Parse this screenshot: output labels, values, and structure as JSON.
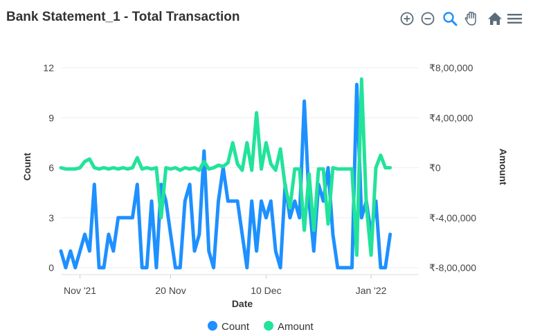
{
  "header": {
    "title": "Bank Statement_1 - Total Transaction"
  },
  "toolbar": {
    "buttons": [
      {
        "icon": "zoom-in-icon",
        "label": "Zoom in"
      },
      {
        "icon": "zoom-out-icon",
        "label": "Zoom out"
      },
      {
        "icon": "selection-zoom-icon",
        "label": "Selection zoom"
      },
      {
        "icon": "pan-hand-icon",
        "label": "Pan"
      },
      {
        "icon": "home-icon",
        "label": "Reset zoom"
      },
      {
        "icon": "menu-icon",
        "label": "Menu"
      }
    ]
  },
  "chart_data": {
    "type": "line",
    "title": "Bank Statement_1 - Total Transaction",
    "xlabel": "Date",
    "x_ticks": [
      "Nov '21",
      "20 Nov",
      "10 Dec",
      "Jan '22"
    ],
    "x_range": [
      "2021-10-28",
      "2022-01-11"
    ],
    "grid": true,
    "legend_position": "bottom",
    "y_axes": [
      {
        "side": "left",
        "label": "Count",
        "ylim": [
          0,
          12
        ],
        "ticks": [
          "0",
          "3",
          "6",
          "9",
          "12"
        ]
      },
      {
        "side": "right",
        "label": "Amount",
        "ylim": [
          -800000,
          800000
        ],
        "ticks": [
          "₹-8,00,000",
          "₹-4,00,000",
          "₹0",
          "₹4,00,000",
          "₹8,00,000"
        ]
      }
    ],
    "series": [
      {
        "name": "Count",
        "color": "#1E90FF",
        "axis": "left",
        "x": [
          "2021-10-28",
          "2021-10-29",
          "2021-10-30",
          "2021-10-31",
          "2021-11-01",
          "2021-11-02",
          "2021-11-03",
          "2021-11-04",
          "2021-11-05",
          "2021-11-06",
          "2021-11-07",
          "2021-11-08",
          "2021-11-09",
          "2021-11-10",
          "2021-11-11",
          "2021-11-12",
          "2021-11-13",
          "2021-11-14",
          "2021-11-15",
          "2021-11-16",
          "2021-11-17",
          "2021-11-18",
          "2021-11-19",
          "2021-11-20",
          "2021-11-21",
          "2021-11-22",
          "2021-11-23",
          "2021-11-24",
          "2021-11-25",
          "2021-11-26",
          "2021-11-27",
          "2021-11-28",
          "2021-11-29",
          "2021-11-30",
          "2021-12-01",
          "2021-12-02",
          "2021-12-03",
          "2021-12-04",
          "2021-12-05",
          "2021-12-06",
          "2021-12-07",
          "2021-12-08",
          "2021-12-09",
          "2021-12-10",
          "2021-12-11",
          "2021-12-12",
          "2021-12-13",
          "2021-12-14",
          "2021-12-15",
          "2021-12-16",
          "2021-12-17",
          "2021-12-18",
          "2021-12-19",
          "2021-12-20",
          "2021-12-21",
          "2021-12-22",
          "2021-12-23",
          "2021-12-24",
          "2021-12-25",
          "2021-12-26",
          "2021-12-27",
          "2021-12-28",
          "2021-12-29",
          "2021-12-30",
          "2021-12-31",
          "2022-01-01",
          "2022-01-02",
          "2022-01-03",
          "2022-01-04",
          "2022-01-05"
        ],
        "values": [
          1,
          0,
          1,
          0,
          1,
          2,
          1,
          5,
          0,
          0,
          2,
          1,
          3,
          3,
          3,
          3,
          5,
          0,
          0,
          4,
          0,
          5,
          4,
          2,
          0,
          0,
          4,
          5,
          1,
          2,
          7,
          1,
          0,
          4,
          6,
          4,
          4,
          4,
          2,
          0,
          4,
          1,
          4,
          3,
          4,
          1,
          0,
          5,
          3,
          4,
          3,
          10,
          4,
          1,
          5,
          4,
          6,
          2,
          0,
          0,
          0,
          0,
          11,
          3,
          4,
          2,
          4,
          0,
          0,
          2
        ]
      },
      {
        "name": "Amount",
        "color": "#22E39A",
        "axis": "right",
        "x": [
          "2021-10-28",
          "2021-10-29",
          "2021-10-30",
          "2021-10-31",
          "2021-11-01",
          "2021-11-02",
          "2021-11-03",
          "2021-11-04",
          "2021-11-05",
          "2021-11-06",
          "2021-11-07",
          "2021-11-08",
          "2021-11-09",
          "2021-11-10",
          "2021-11-11",
          "2021-11-12",
          "2021-11-13",
          "2021-11-14",
          "2021-11-15",
          "2021-11-16",
          "2021-11-17",
          "2021-11-18",
          "2021-11-19",
          "2021-11-20",
          "2021-11-21",
          "2021-11-22",
          "2021-11-23",
          "2021-11-24",
          "2021-11-25",
          "2021-11-26",
          "2021-11-27",
          "2021-11-28",
          "2021-11-29",
          "2021-11-30",
          "2021-12-01",
          "2021-12-02",
          "2021-12-03",
          "2021-12-04",
          "2021-12-05",
          "2021-12-06",
          "2021-12-07",
          "2021-12-08",
          "2021-12-09",
          "2021-12-10",
          "2021-12-11",
          "2021-12-12",
          "2021-12-13",
          "2021-12-14",
          "2021-12-15",
          "2021-12-16",
          "2021-12-17",
          "2021-12-18",
          "2021-12-19",
          "2021-12-20",
          "2021-12-21",
          "2021-12-22",
          "2021-12-23",
          "2021-12-24",
          "2021-12-25",
          "2021-12-26",
          "2021-12-27",
          "2021-12-28",
          "2021-12-29",
          "2021-12-30",
          "2021-12-31",
          "2022-01-01",
          "2022-01-02",
          "2022-01-03",
          "2022-01-04",
          "2022-01-05"
        ],
        "values": [
          0,
          -10000,
          -10000,
          -10000,
          0,
          50000,
          70000,
          0,
          -10000,
          0,
          -10000,
          0,
          -10000,
          0,
          -10000,
          0,
          80000,
          -10000,
          0,
          -10000,
          0,
          -400000,
          0,
          -10000,
          0,
          -20000,
          0,
          -10000,
          0,
          -20000,
          50000,
          -10000,
          0,
          20000,
          10000,
          40000,
          200000,
          30000,
          -20000,
          200000,
          -20000,
          440000,
          -10000,
          200000,
          30000,
          -20000,
          150000,
          -150000,
          -320000,
          -10000,
          -10000,
          -500000,
          -50000,
          -500000,
          -10000,
          -10000,
          -450000,
          0,
          -10000,
          -10000,
          -10000,
          -10000,
          -700000,
          710000,
          -300000,
          -700000,
          0,
          100000,
          0,
          0
        ]
      }
    ]
  }
}
